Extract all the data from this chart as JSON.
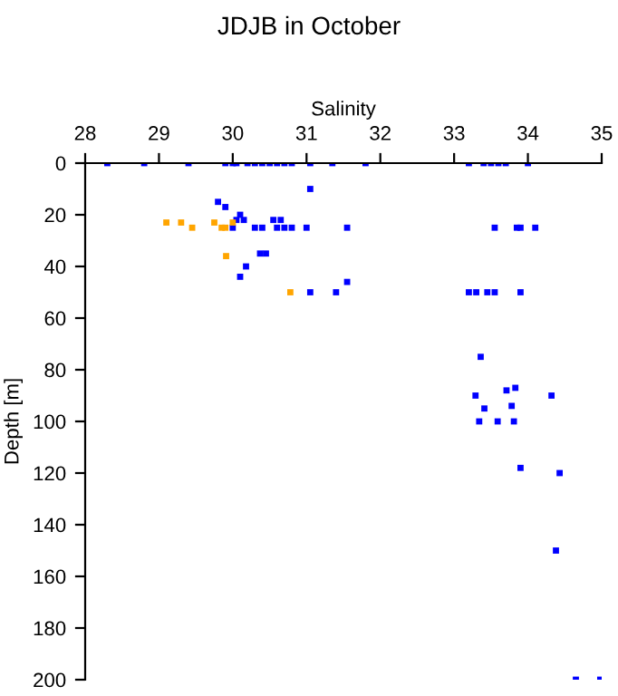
{
  "chart_data": {
    "type": "scatter",
    "title": "JDJB in October",
    "xlabel": "Salinity",
    "ylabel": "Depth [m]",
    "xlim": [
      28,
      35
    ],
    "xticks": [
      28,
      29,
      30,
      31,
      32,
      33,
      34,
      35
    ],
    "ylim": [
      200,
      0
    ],
    "yticks": [
      0,
      20,
      40,
      60,
      80,
      100,
      120,
      140,
      160,
      180,
      200
    ],
    "marker": "square",
    "grid": false,
    "legend": false,
    "series": [
      {
        "color": "#0000ff",
        "x": [
          28.3,
          28.8,
          29.4,
          29.9,
          30.0,
          30.05,
          30.2,
          30.3,
          30.4,
          30.5,
          30.6,
          30.7,
          30.8,
          31.05,
          31.35,
          31.8,
          33.2,
          33.4,
          33.5,
          33.6,
          33.7,
          34.0,
          31.05,
          29.8,
          29.9,
          30.1,
          30.05,
          30.15,
          30.55,
          30.65,
          30.0,
          30.3,
          30.4,
          30.6,
          30.7,
          30.8,
          31.0,
          31.55,
          33.55,
          33.85,
          33.9,
          34.1,
          30.37,
          30.45,
          30.18,
          30.1,
          31.05,
          31.4,
          31.55,
          33.2,
          33.3,
          33.45,
          33.55,
          33.9,
          33.36,
          33.83,
          33.71,
          33.29,
          34.32,
          33.41,
          33.78,
          33.34,
          33.59,
          33.81,
          33.9,
          34.43,
          34.38,
          34.65,
          34.98
        ],
        "values": [
          0,
          0,
          0,
          0,
          0,
          0,
          0,
          0,
          0,
          0,
          0,
          0,
          0,
          0,
          0,
          0,
          0,
          0,
          0,
          0,
          0,
          0,
          10,
          15,
          17,
          20,
          22,
          22,
          22,
          22,
          25,
          25,
          25,
          25,
          25,
          25,
          25,
          25,
          25,
          25,
          25,
          25,
          35,
          35,
          40,
          44,
          50,
          50,
          46,
          50,
          50,
          50,
          50,
          50,
          75,
          87,
          88,
          90,
          90,
          95,
          94,
          100,
          100,
          100,
          118,
          120,
          150,
          200,
          200
        ]
      },
      {
        "color": "#ffa500",
        "x": [
          29.1,
          29.3,
          29.75,
          30.0,
          29.45,
          29.85,
          29.9,
          29.91,
          30.78
        ],
        "values": [
          23,
          23,
          23,
          23,
          25,
          25,
          25,
          36,
          50
        ]
      }
    ]
  }
}
